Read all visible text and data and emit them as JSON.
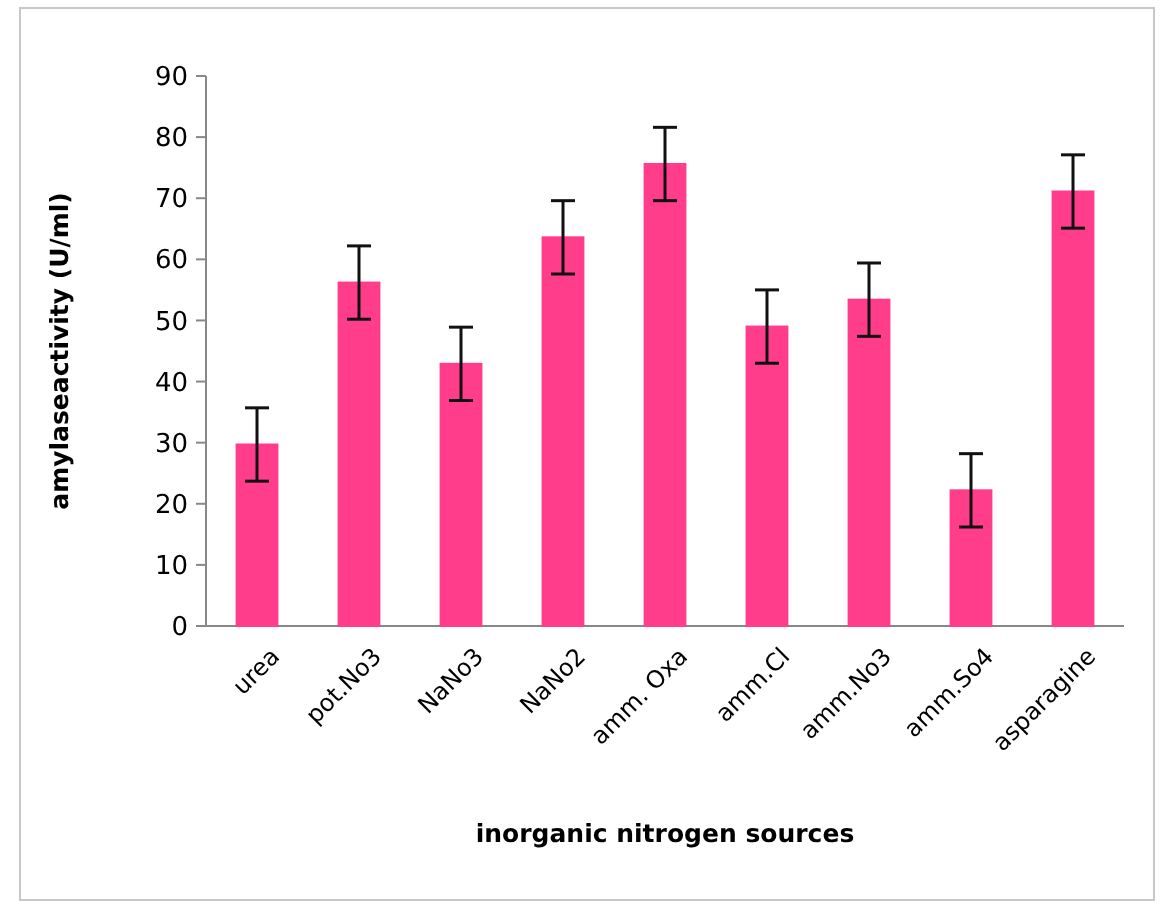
{
  "chart_data": {
    "type": "bar",
    "xlabel": "inorganic nitrogen sources",
    "ylabel": "amylaseactivity (U/ml)",
    "categories": [
      "urea",
      "pot.No3",
      "NaNo3",
      "NaNo2",
      "amm. Oxa",
      "amm.Cl",
      "amm.No3",
      "amm.So4",
      "asparagine"
    ],
    "values": [
      29.7,
      56.2,
      42.9,
      63.6,
      75.6,
      49.0,
      53.4,
      22.2,
      71.1
    ],
    "errors": [
      6,
      6,
      6,
      6,
      6,
      6,
      6,
      6,
      6
    ],
    "color": "#ff3d8b",
    "ylim": [
      0,
      90
    ],
    "yticks": [
      0,
      10,
      20,
      30,
      40,
      50,
      60,
      70,
      80,
      90
    ],
    "grid": false
  }
}
